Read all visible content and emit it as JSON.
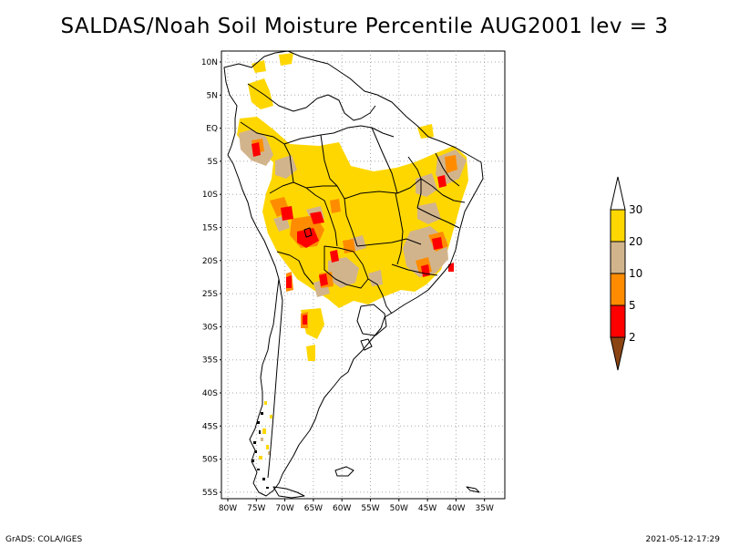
{
  "title": "SALDAS/Noah Soil Moisture Percentile AUG2001 lev = 3",
  "footer": {
    "left": "GrADS: COLA/IGES",
    "right": "2021-05-12-17:29"
  },
  "map": {
    "lat_ticks": [
      "10N",
      "5N",
      "EQ",
      "5S",
      "10S",
      "15S",
      "20S",
      "25S",
      "30S",
      "35S",
      "40S",
      "45S",
      "50S",
      "55S"
    ],
    "lon_ticks": [
      "80W",
      "75W",
      "70W",
      "65W",
      "60W",
      "55W",
      "50W",
      "45W",
      "40W",
      "35W"
    ]
  },
  "colorbar": {
    "levels": [
      "2",
      "5",
      "10",
      "20",
      "30"
    ],
    "colors": {
      "below_2": "#8b4513",
      "2_5": "#ff0000",
      "5_10": "#ff8c00",
      "10_20": "#d2b48c",
      "20_30": "#ffd700",
      "above_30": "#ffffff"
    }
  }
}
